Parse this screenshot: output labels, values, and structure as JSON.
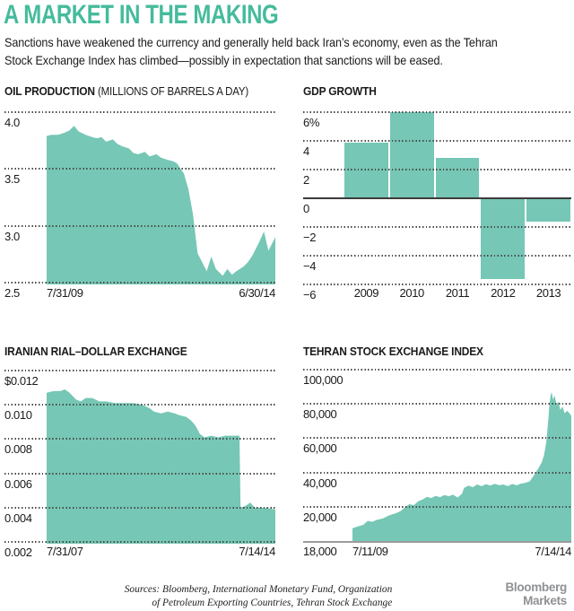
{
  "page": {
    "title": "A MARKET IN THE MAKING",
    "subtitle_lines": [
      "Sanctions have weakened the currency and generally held back Iran’s economy, even as the Tehran",
      "Stock Exchange Index has climbed—possibly in expectation that sanctions will be eased."
    ],
    "colors": {
      "accent": "#45bb9c",
      "fill": "#76c7b5",
      "text": "#1a1a1a",
      "gridline": "#4a4a4a",
      "zero_line": "#3c3c3c",
      "baseline_gray": "#9c9c9c",
      "brand_gray": "#8f9194"
    },
    "footer": {
      "sources_lines": [
        "Sources: Bloomberg, International Monetary Fund, Organization",
        "of Petroleum Exporting Countries, Tehran Stock Exchange"
      ],
      "brand_lines": [
        "Bloomberg",
        "Markets"
      ]
    }
  },
  "chart_data": [
    {
      "id": "oil",
      "type": "area",
      "title": "OIL PRODUCTION",
      "title_note": "(MILLIONS OF BARRELS A DAY)",
      "ylim": [
        2.5,
        4.0
      ],
      "grid": "dotted",
      "yticks": [
        {
          "value": 4.0,
          "label": "4.0"
        },
        {
          "value": 3.5,
          "label": "3.5"
        },
        {
          "value": 3.0,
          "label": "3.0"
        },
        {
          "value": 2.5,
          "label": "2.5"
        }
      ],
      "xlabels": {
        "start": "7/31/09",
        "end": "6/30/14"
      },
      "points": [
        [
          0.0,
          3.79
        ],
        [
          0.02,
          3.8
        ],
        [
          0.05,
          3.8
        ],
        [
          0.08,
          3.82
        ],
        [
          0.1,
          3.84
        ],
        [
          0.12,
          3.88
        ],
        [
          0.14,
          3.83
        ],
        [
          0.17,
          3.8
        ],
        [
          0.2,
          3.78
        ],
        [
          0.22,
          3.77
        ],
        [
          0.24,
          3.78
        ],
        [
          0.26,
          3.74
        ],
        [
          0.29,
          3.76
        ],
        [
          0.31,
          3.72
        ],
        [
          0.33,
          3.7
        ],
        [
          0.36,
          3.68
        ],
        [
          0.38,
          3.64
        ],
        [
          0.4,
          3.63
        ],
        [
          0.43,
          3.65
        ],
        [
          0.45,
          3.61
        ],
        [
          0.48,
          3.63
        ],
        [
          0.5,
          3.6
        ],
        [
          0.53,
          3.58
        ],
        [
          0.55,
          3.57
        ],
        [
          0.57,
          3.55
        ],
        [
          0.6,
          3.46
        ],
        [
          0.62,
          3.32
        ],
        [
          0.64,
          3.1
        ],
        [
          0.66,
          2.76
        ],
        [
          0.68,
          2.68
        ],
        [
          0.7,
          2.6
        ],
        [
          0.72,
          2.73
        ],
        [
          0.74,
          2.62
        ],
        [
          0.77,
          2.56
        ],
        [
          0.79,
          2.62
        ],
        [
          0.81,
          2.57
        ],
        [
          0.83,
          2.6
        ],
        [
          0.86,
          2.64
        ],
        [
          0.88,
          2.68
        ],
        [
          0.9,
          2.74
        ],
        [
          0.93,
          2.86
        ],
        [
          0.95,
          2.95
        ],
        [
          0.97,
          2.78
        ],
        [
          1.0,
          2.9
        ]
      ]
    },
    {
      "id": "gdp",
      "type": "bar",
      "title": "GDP GROWTH",
      "ylim": [
        -6,
        6
      ],
      "grid": "dotted",
      "yticks": [
        {
          "value": 6,
          "label": "6%"
        },
        {
          "value": 4,
          "label": "4"
        },
        {
          "value": 2,
          "label": "2"
        },
        {
          "value": 0,
          "label": "0"
        },
        {
          "value": -2,
          "label": "−2"
        },
        {
          "value": -4,
          "label": "−4"
        },
        {
          "value": -6,
          "label": "−6"
        }
      ],
      "categories": [
        "2009",
        "2010",
        "2011",
        "2012",
        "2013"
      ],
      "values": [
        3.9,
        6.0,
        2.8,
        -5.6,
        -1.6
      ],
      "xlabels": {}
    },
    {
      "id": "rial",
      "type": "area",
      "title": "IRANIAN RIAL–DOLLAR EXCHANGE",
      "ylim": [
        0.002,
        0.012
      ],
      "grid": "dotted",
      "yticks": [
        {
          "value": 0.012,
          "label": "$0.012"
        },
        {
          "value": 0.01,
          "label": "0.010"
        },
        {
          "value": 0.008,
          "label": "0.008"
        },
        {
          "value": 0.006,
          "label": "0.006"
        },
        {
          "value": 0.004,
          "label": "0.004"
        },
        {
          "value": 0.002,
          "label": "0.002"
        }
      ],
      "xlabels": {
        "start": "7/31/07",
        "end": "7/14/14"
      },
      "points": [
        [
          0.0,
          0.0107
        ],
        [
          0.03,
          0.0108
        ],
        [
          0.06,
          0.0108
        ],
        [
          0.08,
          0.0109
        ],
        [
          0.1,
          0.0107
        ],
        [
          0.13,
          0.0103
        ],
        [
          0.15,
          0.0102
        ],
        [
          0.17,
          0.0104
        ],
        [
          0.2,
          0.0104
        ],
        [
          0.23,
          0.0102
        ],
        [
          0.26,
          0.0102
        ],
        [
          0.3,
          0.0101
        ],
        [
          0.34,
          0.0101
        ],
        [
          0.38,
          0.0101
        ],
        [
          0.42,
          0.01
        ],
        [
          0.45,
          0.0098
        ],
        [
          0.47,
          0.0096
        ],
        [
          0.5,
          0.0095
        ],
        [
          0.53,
          0.0096
        ],
        [
          0.56,
          0.0095
        ],
        [
          0.58,
          0.0094
        ],
        [
          0.61,
          0.0093
        ],
        [
          0.63,
          0.0091
        ],
        [
          0.65,
          0.0088
        ],
        [
          0.67,
          0.0083
        ],
        [
          0.69,
          0.0081
        ],
        [
          0.72,
          0.0082
        ],
        [
          0.75,
          0.0081
        ],
        [
          0.78,
          0.0082
        ],
        [
          0.81,
          0.0082
        ],
        [
          0.843,
          0.0082
        ],
        [
          0.848,
          0.004
        ],
        [
          0.87,
          0.0041
        ],
        [
          0.89,
          0.0043
        ],
        [
          0.91,
          0.004
        ],
        [
          0.95,
          0.004
        ],
        [
          1.0,
          0.0039
        ]
      ]
    },
    {
      "id": "tehran",
      "type": "area",
      "title": "TEHRAN STOCK EXCHANGE INDEX",
      "ylim": [
        0,
        100000
      ],
      "grid": "dotted",
      "baseline_label": "18,000",
      "yticks": [
        {
          "value": 100000,
          "label": "100,000"
        },
        {
          "value": 80000,
          "label": "80,000"
        },
        {
          "value": 60000,
          "label": "60,000"
        },
        {
          "value": 40000,
          "label": "40,000"
        },
        {
          "value": 20000,
          "label": "20,000"
        }
      ],
      "xlabels": {
        "start": "7/11/09",
        "end": "7/14/14"
      },
      "points": [
        [
          0.0,
          7500
        ],
        [
          0.02,
          8300
        ],
        [
          0.05,
          9500
        ],
        [
          0.07,
          11800
        ],
        [
          0.09,
          11200
        ],
        [
          0.11,
          12300
        ],
        [
          0.14,
          13200
        ],
        [
          0.16,
          14500
        ],
        [
          0.18,
          15500
        ],
        [
          0.2,
          16300
        ],
        [
          0.22,
          17500
        ],
        [
          0.24,
          19800
        ],
        [
          0.26,
          21500
        ],
        [
          0.28,
          20800
        ],
        [
          0.3,
          23200
        ],
        [
          0.32,
          24200
        ],
        [
          0.34,
          25800
        ],
        [
          0.36,
          25100
        ],
        [
          0.38,
          26300
        ],
        [
          0.4,
          25600
        ],
        [
          0.42,
          26800
        ],
        [
          0.44,
          26200
        ],
        [
          0.46,
          27000
        ],
        [
          0.48,
          25400
        ],
        [
          0.5,
          27500
        ],
        [
          0.51,
          31000
        ],
        [
          0.53,
          32300
        ],
        [
          0.55,
          31400
        ],
        [
          0.57,
          33000
        ],
        [
          0.59,
          32000
        ],
        [
          0.61,
          33200
        ],
        [
          0.63,
          32400
        ],
        [
          0.65,
          33400
        ],
        [
          0.67,
          32600
        ],
        [
          0.69,
          33000
        ],
        [
          0.71,
          32000
        ],
        [
          0.73,
          33300
        ],
        [
          0.75,
          32500
        ],
        [
          0.77,
          33500
        ],
        [
          0.79,
          34000
        ],
        [
          0.81,
          34800
        ],
        [
          0.83,
          38500
        ],
        [
          0.85,
          42500
        ],
        [
          0.865,
          46000
        ],
        [
          0.875,
          50000
        ],
        [
          0.885,
          57000
        ],
        [
          0.89,
          64000
        ],
        [
          0.895,
          71000
        ],
        [
          0.9,
          80000
        ],
        [
          0.905,
          84500
        ],
        [
          0.91,
          87000
        ],
        [
          0.917,
          82500
        ],
        [
          0.924,
          85000
        ],
        [
          0.932,
          79500
        ],
        [
          0.94,
          81500
        ],
        [
          0.95,
          76500
        ],
        [
          0.96,
          78500
        ],
        [
          0.97,
          74500
        ],
        [
          0.98,
          76000
        ],
        [
          0.99,
          74800
        ],
        [
          1.0,
          73000
        ]
      ]
    }
  ]
}
